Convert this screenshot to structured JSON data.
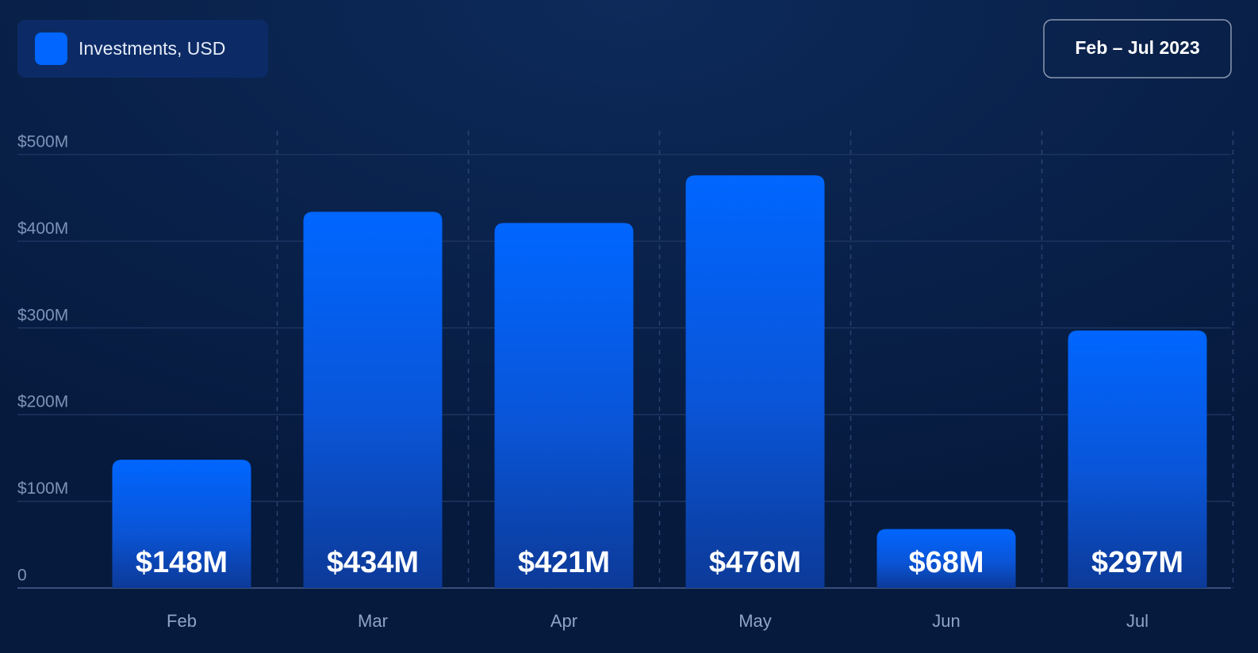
{
  "chart_data": {
    "type": "bar",
    "subtitle": "Feb – Jul 2023",
    "categories": [
      "Feb",
      "Mar",
      "Apr",
      "May",
      "Jun",
      "Jul"
    ],
    "series": [
      {
        "name": "Investments, USD",
        "color": "#0066ff",
        "values": [
          148,
          434,
          421,
          476,
          68,
          297
        ],
        "value_labels": [
          "$148M",
          "$434M",
          "$421M",
          "$476M",
          "$68M",
          "$297M"
        ]
      }
    ],
    "ylim": [
      0,
      500
    ],
    "yticks": [
      0,
      {
        "value": 100,
        "label": "$100M"
      },
      {
        "value": 200,
        "label": "$200M"
      },
      {
        "value": 300,
        "label": "$300M"
      },
      {
        "value": 400,
        "label": "$400M"
      },
      {
        "value": 500,
        "label": "$500M"
      }
    ],
    "grid": true
  }
}
